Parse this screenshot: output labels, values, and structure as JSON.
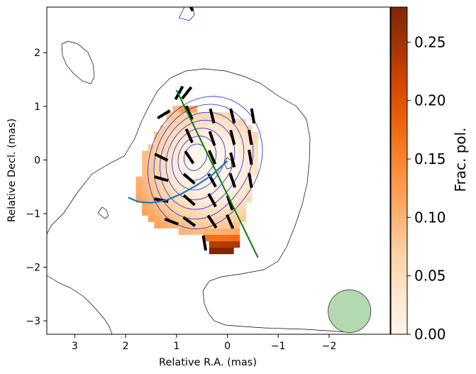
{
  "chart_data": {
    "type": "heatmap",
    "title": "",
    "xlabel": "Relative R.A. (mas)",
    "ylabel": "Relative Decl. (mas)",
    "xlim": [
      3.55,
      -3.2
    ],
    "ylim": [
      -3.25,
      2.85
    ],
    "x_ticks": [
      3,
      2,
      1,
      0,
      -1,
      -2
    ],
    "x_tick_labels": [
      "3",
      "2",
      "1",
      "0",
      "−1",
      "−2"
    ],
    "y_ticks": [
      2,
      1,
      0,
      -1,
      -2,
      -3
    ],
    "y_tick_labels": [
      "2",
      "1",
      "0",
      "−1",
      "−2",
      "−3"
    ],
    "colorbar": {
      "label": "Frac. pol.",
      "colormap": "Oranges",
      "range": [
        0,
        0.28
      ],
      "ticks": [
        0,
        0.05,
        0.1,
        0.15,
        0.2,
        0.25
      ],
      "tick_labels": [
        "0.00",
        "0.05",
        "0.10",
        "0.15",
        "0.20",
        "0.25"
      ],
      "colors": [
        "#fff5eb",
        "#fee6ce",
        "#fdd0a2",
        "#fdae6b",
        "#fd8d3c",
        "#f16913",
        "#d94801",
        "#a63603",
        "#7f2704"
      ]
    },
    "frac_pol_map": {
      "pixel_size_mas": 0.12,
      "description_fields": [
        "x_center",
        "y_center",
        "frac_pol"
      ]
    },
    "contours": {
      "outer_color": "#000000",
      "inner_color": "#2222dd"
    },
    "evpa_ticks": {
      "color": "#000000",
      "sticks": [
        {
          "x": 0.95,
          "y": 1.25,
          "angle_deg": 120
        },
        {
          "x": 0.8,
          "y": 1.25,
          "angle_deg": 130
        },
        {
          "x": 1.25,
          "y": 0.85,
          "angle_deg": 150
        },
        {
          "x": 0.75,
          "y": 0.88,
          "angle_deg": 65
        },
        {
          "x": 0.3,
          "y": 0.82,
          "angle_deg": 75
        },
        {
          "x": -0.1,
          "y": 0.82,
          "angle_deg": 75
        },
        {
          "x": -0.5,
          "y": 0.82,
          "angle_deg": 80
        },
        {
          "x": 0.75,
          "y": 0.45,
          "angle_deg": 65
        },
        {
          "x": 0.3,
          "y": 0.4,
          "angle_deg": 70
        },
        {
          "x": -0.1,
          "y": 0.42,
          "angle_deg": 75
        },
        {
          "x": -0.45,
          "y": 0.42,
          "angle_deg": 80
        },
        {
          "x": 1.3,
          "y": 0.05,
          "angle_deg": 25
        },
        {
          "x": 0.75,
          "y": 0.05,
          "angle_deg": 55
        },
        {
          "x": 0.3,
          "y": 0.05,
          "angle_deg": 65
        },
        {
          "x": -0.1,
          "y": 0.0,
          "angle_deg": 75
        },
        {
          "x": -0.45,
          "y": 0.05,
          "angle_deg": 80
        },
        {
          "x": 1.3,
          "y": -0.35,
          "angle_deg": 15
        },
        {
          "x": 0.75,
          "y": -0.35,
          "angle_deg": 40
        },
        {
          "x": 0.3,
          "y": -0.38,
          "angle_deg": 60
        },
        {
          "x": -0.1,
          "y": -0.38,
          "angle_deg": 70
        },
        {
          "x": -0.45,
          "y": -0.38,
          "angle_deg": 80
        },
        {
          "x": 1.3,
          "y": -0.75,
          "angle_deg": 10
        },
        {
          "x": 0.75,
          "y": -0.75,
          "angle_deg": 40
        },
        {
          "x": 0.3,
          "y": -0.75,
          "angle_deg": 60
        },
        {
          "x": -0.05,
          "y": -0.8,
          "angle_deg": 70
        },
        {
          "x": 1.1,
          "y": -1.15,
          "angle_deg": 20
        },
        {
          "x": 0.75,
          "y": -1.15,
          "angle_deg": 35
        },
        {
          "x": 0.3,
          "y": -1.15,
          "angle_deg": 55
        },
        {
          "x": -0.05,
          "y": -1.15,
          "angle_deg": 65
        },
        {
          "x": 0.45,
          "y": -1.55,
          "angle_deg": 80
        },
        {
          "x": 0.75,
          "y": 2.9,
          "angle_deg": 60
        }
      ]
    },
    "overlay_lines": {
      "jet_axis": {
        "color": "#008000",
        "x": [
          1.0,
          -0.6
        ],
        "y": [
          1.3,
          -1.82
        ]
      },
      "curved_track": {
        "color": "#1f77b4",
        "x": [
          1.95,
          1.75,
          1.5,
          1.2,
          0.9,
          0.6,
          0.3,
          0.0
        ],
        "y": [
          -0.7,
          -0.78,
          -0.8,
          -0.75,
          -0.63,
          -0.47,
          -0.28,
          -0.02
        ]
      }
    },
    "beam": {
      "color": "#7fbf7b",
      "x": -2.4,
      "y": -2.82,
      "radius_mas": 0.42
    }
  }
}
